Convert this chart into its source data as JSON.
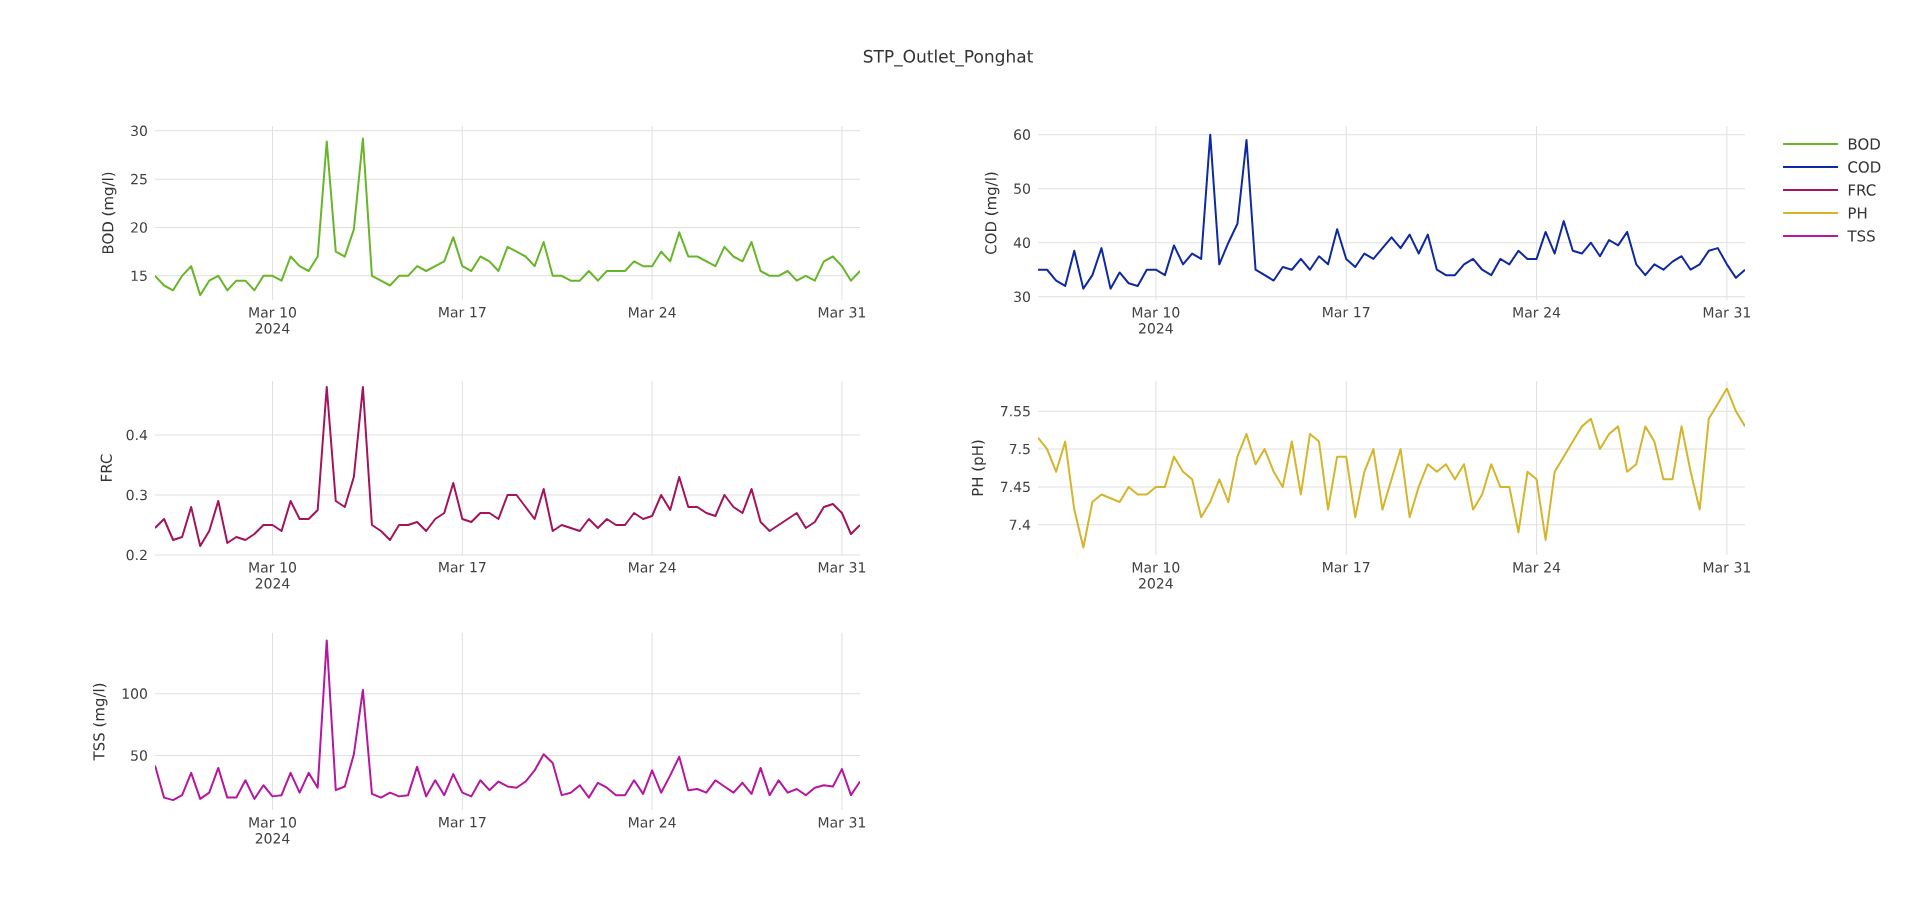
{
  "chart_data": [
    {
      "type": "line",
      "title": "STP_Outlet_Ponghat",
      "ylabel": "BOD (mg/l)",
      "grid": true,
      "legend": "right",
      "xlim": [
        "2024-03-05T16:00",
        "2024-03-31T16:00"
      ],
      "ylim": [
        12.5,
        30.5
      ],
      "yticks": [
        15,
        20,
        25,
        30
      ],
      "xticks": [
        {
          "value": "2024-03-10",
          "label": "Mar 10 2024"
        },
        {
          "value": "2024-03-17",
          "label": "Mar 17"
        },
        {
          "value": "2024-03-24",
          "label": "Mar 24"
        },
        {
          "value": "2024-03-31",
          "label": "Mar 31"
        }
      ],
      "x": [
        "2024-03-05T16:00",
        "2024-03-06T00:00",
        "2024-03-06T08:00",
        "2024-03-06T16:00",
        "2024-03-07T00:00",
        "2024-03-07T08:00",
        "2024-03-07T16:00",
        "2024-03-08T00:00",
        "2024-03-08T08:00",
        "2024-03-08T16:00",
        "2024-03-09T00:00",
        "2024-03-09T08:00",
        "2024-03-09T16:00",
        "2024-03-10T00:00",
        "2024-03-10T08:00",
        "2024-03-10T16:00",
        "2024-03-11T00:00",
        "2024-03-11T08:00",
        "2024-03-11T16:00",
        "2024-03-12T00:00",
        "2024-03-12T08:00",
        "2024-03-12T16:00",
        "2024-03-13T00:00",
        "2024-03-13T08:00",
        "2024-03-13T16:00",
        "2024-03-14T00:00",
        "2024-03-14T08:00",
        "2024-03-14T16:00",
        "2024-03-15T00:00",
        "2024-03-15T08:00",
        "2024-03-15T16:00",
        "2024-03-16T00:00",
        "2024-03-16T08:00",
        "2024-03-16T16:00",
        "2024-03-17T00:00",
        "2024-03-17T08:00",
        "2024-03-17T16:00",
        "2024-03-18T00:00",
        "2024-03-18T08:00",
        "2024-03-18T16:00",
        "2024-03-19T00:00",
        "2024-03-19T08:00",
        "2024-03-19T16:00",
        "2024-03-20T00:00",
        "2024-03-20T08:00",
        "2024-03-20T16:00",
        "2024-03-21T00:00",
        "2024-03-21T08:00",
        "2024-03-21T16:00",
        "2024-03-22T00:00",
        "2024-03-22T08:00",
        "2024-03-22T16:00",
        "2024-03-23T00:00",
        "2024-03-23T08:00",
        "2024-03-23T16:00",
        "2024-03-24T00:00",
        "2024-03-24T08:00",
        "2024-03-24T16:00",
        "2024-03-25T00:00",
        "2024-03-25T08:00",
        "2024-03-25T16:00",
        "2024-03-26T00:00",
        "2024-03-26T08:00",
        "2024-03-26T16:00",
        "2024-03-27T00:00",
        "2024-03-27T08:00",
        "2024-03-27T16:00",
        "2024-03-28T00:00",
        "2024-03-28T08:00",
        "2024-03-28T16:00",
        "2024-03-29T00:00",
        "2024-03-29T08:00",
        "2024-03-29T16:00",
        "2024-03-30T00:00",
        "2024-03-30T08:00",
        "2024-03-30T16:00",
        "2024-03-31T00:00",
        "2024-03-31T08:00",
        "2024-03-31T16:00"
      ],
      "series": [
        {
          "name": "BOD",
          "color": "#68b52a",
          "values": [
            15,
            14,
            13.5,
            15,
            16,
            13,
            14.5,
            15,
            13.5,
            14.5,
            14.5,
            13.5,
            15,
            15,
            14.5,
            17,
            16,
            15.5,
            17,
            28.9,
            17.5,
            17,
            19.8,
            29.2,
            15,
            14.5,
            14,
            15,
            15,
            16,
            15.5,
            16,
            16.5,
            19,
            16,
            15.5,
            17,
            16.5,
            15.5,
            18,
            17.5,
            17,
            16,
            18.5,
            15,
            15,
            14.5,
            14.5,
            15.5,
            14.5,
            15.5,
            15.5,
            15.5,
            16.5,
            16,
            16,
            17.5,
            16.5,
            19.5,
            17,
            17,
            16.5,
            16,
            18,
            17,
            16.5,
            18.5,
            15.5,
            15,
            15,
            15.5,
            14.5,
            15,
            14.5,
            16.5,
            17,
            16,
            14.5,
            15.5
          ]
        }
      ]
    },
    {
      "type": "line",
      "ylabel": "COD (mg/l)",
      "grid": true,
      "legend": "right",
      "xlim": [
        "2024-03-05T16:00",
        "2024-03-31T16:00"
      ],
      "ylim": [
        29.4,
        61.6
      ],
      "yticks": [
        30,
        40,
        50,
        60
      ],
      "xticks": [
        {
          "value": "2024-03-10",
          "label": "Mar 10 2024"
        },
        {
          "value": "2024-03-17",
          "label": "Mar 17"
        },
        {
          "value": "2024-03-24",
          "label": "Mar 24"
        },
        {
          "value": "2024-03-31",
          "label": "Mar 31"
        }
      ],
      "x": [
        "2024-03-05T16:00",
        "2024-03-06T00:00",
        "2024-03-06T08:00",
        "2024-03-06T16:00",
        "2024-03-07T00:00",
        "2024-03-07T08:00",
        "2024-03-07T16:00",
        "2024-03-08T00:00",
        "2024-03-08T08:00",
        "2024-03-08T16:00",
        "2024-03-09T00:00",
        "2024-03-09T08:00",
        "2024-03-09T16:00",
        "2024-03-10T00:00",
        "2024-03-10T08:00",
        "2024-03-10T16:00",
        "2024-03-11T00:00",
        "2024-03-11T08:00",
        "2024-03-11T16:00",
        "2024-03-12T00:00",
        "2024-03-12T08:00",
        "2024-03-12T16:00",
        "2024-03-13T00:00",
        "2024-03-13T08:00",
        "2024-03-13T16:00",
        "2024-03-14T00:00",
        "2024-03-14T08:00",
        "2024-03-14T16:00",
        "2024-03-15T00:00",
        "2024-03-15T08:00",
        "2024-03-15T16:00",
        "2024-03-16T00:00",
        "2024-03-16T08:00",
        "2024-03-16T16:00",
        "2024-03-17T00:00",
        "2024-03-17T08:00",
        "2024-03-17T16:00",
        "2024-03-18T00:00",
        "2024-03-18T08:00",
        "2024-03-18T16:00",
        "2024-03-19T00:00",
        "2024-03-19T08:00",
        "2024-03-19T16:00",
        "2024-03-20T00:00",
        "2024-03-20T08:00",
        "2024-03-20T16:00",
        "2024-03-21T00:00",
        "2024-03-21T08:00",
        "2024-03-21T16:00",
        "2024-03-22T00:00",
        "2024-03-22T08:00",
        "2024-03-22T16:00",
        "2024-03-23T00:00",
        "2024-03-23T08:00",
        "2024-03-23T16:00",
        "2024-03-24T00:00",
        "2024-03-24T08:00",
        "2024-03-24T16:00",
        "2024-03-25T00:00",
        "2024-03-25T08:00",
        "2024-03-25T16:00",
        "2024-03-26T00:00",
        "2024-03-26T08:00",
        "2024-03-26T16:00",
        "2024-03-27T00:00",
        "2024-03-27T08:00",
        "2024-03-27T16:00",
        "2024-03-28T00:00",
        "2024-03-28T08:00",
        "2024-03-28T16:00",
        "2024-03-29T00:00",
        "2024-03-29T08:00",
        "2024-03-29T16:00",
        "2024-03-30T00:00",
        "2024-03-30T08:00",
        "2024-03-30T16:00",
        "2024-03-31T00:00",
        "2024-03-31T08:00",
        "2024-03-31T16:00"
      ],
      "series": [
        {
          "name": "COD",
          "color": "#0f2aa0",
          "values": [
            35,
            35,
            33,
            32,
            38.5,
            31.5,
            34,
            39,
            31.5,
            34.5,
            32.5,
            32,
            35,
            35,
            34,
            39.5,
            36,
            38,
            37,
            60,
            36,
            40,
            43.5,
            59,
            35,
            34,
            33,
            35.5,
            35,
            37,
            35,
            37.5,
            36,
            42.5,
            37,
            35.5,
            38,
            37,
            39,
            41,
            39,
            41.5,
            38,
            41.5,
            35,
            34,
            34,
            36,
            37,
            35,
            34,
            37,
            36,
            38.5,
            37,
            37,
            42,
            38,
            44,
            38.5,
            38,
            40,
            37.5,
            40.5,
            39.5,
            42,
            36,
            34,
            36,
            35,
            36.5,
            37.5,
            35,
            36,
            38.5,
            39,
            36,
            33.5,
            35
          ]
        }
      ]
    },
    {
      "type": "line",
      "ylabel": "FRC",
      "grid": true,
      "legend": "right",
      "xlim": [
        "2024-03-05T16:00",
        "2024-03-31T16:00"
      ],
      "ylim": [
        0.2,
        0.49
      ],
      "yticks": [
        0.2,
        0.3,
        0.4
      ],
      "xticks": [
        {
          "value": "2024-03-10",
          "label": "Mar 10 2024"
        },
        {
          "value": "2024-03-17",
          "label": "Mar 17"
        },
        {
          "value": "2024-03-24",
          "label": "Mar 24"
        },
        {
          "value": "2024-03-31",
          "label": "Mar 31"
        }
      ],
      "x": [
        "2024-03-05T16:00",
        "2024-03-06T00:00",
        "2024-03-06T08:00",
        "2024-03-06T16:00",
        "2024-03-07T00:00",
        "2024-03-07T08:00",
        "2024-03-07T16:00",
        "2024-03-08T00:00",
        "2024-03-08T08:00",
        "2024-03-08T16:00",
        "2024-03-09T00:00",
        "2024-03-09T08:00",
        "2024-03-09T16:00",
        "2024-03-10T00:00",
        "2024-03-10T08:00",
        "2024-03-10T16:00",
        "2024-03-11T00:00",
        "2024-03-11T08:00",
        "2024-03-11T16:00",
        "2024-03-12T00:00",
        "2024-03-12T08:00",
        "2024-03-12T16:00",
        "2024-03-13T00:00",
        "2024-03-13T08:00",
        "2024-03-13T16:00",
        "2024-03-14T00:00",
        "2024-03-14T08:00",
        "2024-03-14T16:00",
        "2024-03-15T00:00",
        "2024-03-15T08:00",
        "2024-03-15T16:00",
        "2024-03-16T00:00",
        "2024-03-16T08:00",
        "2024-03-16T16:00",
        "2024-03-17T00:00",
        "2024-03-17T08:00",
        "2024-03-17T16:00",
        "2024-03-18T00:00",
        "2024-03-18T08:00",
        "2024-03-18T16:00",
        "2024-03-19T00:00",
        "2024-03-19T08:00",
        "2024-03-19T16:00",
        "2024-03-20T00:00",
        "2024-03-20T08:00",
        "2024-03-20T16:00",
        "2024-03-21T00:00",
        "2024-03-21T08:00",
        "2024-03-21T16:00",
        "2024-03-22T00:00",
        "2024-03-22T08:00",
        "2024-03-22T16:00",
        "2024-03-23T00:00",
        "2024-03-23T08:00",
        "2024-03-23T16:00",
        "2024-03-24T00:00",
        "2024-03-24T08:00",
        "2024-03-24T16:00",
        "2024-03-25T00:00",
        "2024-03-25T08:00",
        "2024-03-25T16:00",
        "2024-03-26T00:00",
        "2024-03-26T08:00",
        "2024-03-26T16:00",
        "2024-03-27T00:00",
        "2024-03-27T08:00",
        "2024-03-27T16:00",
        "2024-03-28T00:00",
        "2024-03-28T08:00",
        "2024-03-28T16:00",
        "2024-03-29T00:00",
        "2024-03-29T08:00",
        "2024-03-29T16:00",
        "2024-03-30T00:00",
        "2024-03-30T08:00",
        "2024-03-30T16:00",
        "2024-03-31T00:00",
        "2024-03-31T08:00",
        "2024-03-31T16:00"
      ],
      "series": [
        {
          "name": "FRC",
          "color": "#a3145a",
          "values": [
            0.245,
            0.26,
            0.225,
            0.23,
            0.28,
            0.215,
            0.24,
            0.29,
            0.22,
            0.23,
            0.225,
            0.235,
            0.25,
            0.25,
            0.24,
            0.29,
            0.26,
            0.26,
            0.275,
            0.48,
            0.29,
            0.28,
            0.33,
            0.48,
            0.25,
            0.24,
            0.225,
            0.25,
            0.25,
            0.255,
            0.24,
            0.26,
            0.27,
            0.32,
            0.26,
            0.255,
            0.27,
            0.27,
            0.26,
            0.3,
            0.3,
            0.28,
            0.26,
            0.31,
            0.24,
            0.25,
            0.245,
            0.24,
            0.26,
            0.245,
            0.26,
            0.25,
            0.25,
            0.27,
            0.26,
            0.265,
            0.3,
            0.275,
            0.33,
            0.28,
            0.28,
            0.27,
            0.265,
            0.3,
            0.28,
            0.27,
            0.31,
            0.255,
            0.24,
            0.25,
            0.26,
            0.27,
            0.245,
            0.255,
            0.28,
            0.285,
            0.27,
            0.235,
            0.25
          ]
        }
      ]
    },
    {
      "type": "line",
      "ylabel": "PH (pH)",
      "grid": true,
      "legend": "right",
      "xlim": [
        "2024-03-05T16:00",
        "2024-03-31T16:00"
      ],
      "ylim": [
        7.36,
        7.59
      ],
      "yticks": [
        7.4,
        7.45,
        7.5,
        7.55
      ],
      "xticks": [
        {
          "value": "2024-03-10",
          "label": "Mar 10 2024"
        },
        {
          "value": "2024-03-17",
          "label": "Mar 17"
        },
        {
          "value": "2024-03-24",
          "label": "Mar 24"
        },
        {
          "value": "2024-03-31",
          "label": "Mar 31"
        }
      ],
      "x": [
        "2024-03-05T16:00",
        "2024-03-06T00:00",
        "2024-03-06T08:00",
        "2024-03-06T16:00",
        "2024-03-07T00:00",
        "2024-03-07T08:00",
        "2024-03-07T16:00",
        "2024-03-08T00:00",
        "2024-03-08T08:00",
        "2024-03-08T16:00",
        "2024-03-09T00:00",
        "2024-03-09T08:00",
        "2024-03-09T16:00",
        "2024-03-10T00:00",
        "2024-03-10T08:00",
        "2024-03-10T16:00",
        "2024-03-11T00:00",
        "2024-03-11T08:00",
        "2024-03-11T16:00",
        "2024-03-12T00:00",
        "2024-03-12T08:00",
        "2024-03-12T16:00",
        "2024-03-13T00:00",
        "2024-03-13T08:00",
        "2024-03-13T16:00",
        "2024-03-14T00:00",
        "2024-03-14T08:00",
        "2024-03-14T16:00",
        "2024-03-15T00:00",
        "2024-03-15T08:00",
        "2024-03-15T16:00",
        "2024-03-16T00:00",
        "2024-03-16T08:00",
        "2024-03-16T16:00",
        "2024-03-17T00:00",
        "2024-03-17T08:00",
        "2024-03-17T16:00",
        "2024-03-18T00:00",
        "2024-03-18T08:00",
        "2024-03-18T16:00",
        "2024-03-19T00:00",
        "2024-03-19T08:00",
        "2024-03-19T16:00",
        "2024-03-20T00:00",
        "2024-03-20T08:00",
        "2024-03-20T16:00",
        "2024-03-21T00:00",
        "2024-03-21T08:00",
        "2024-03-21T16:00",
        "2024-03-22T00:00",
        "2024-03-22T08:00",
        "2024-03-22T16:00",
        "2024-03-23T00:00",
        "2024-03-23T08:00",
        "2024-03-23T16:00",
        "2024-03-24T00:00",
        "2024-03-24T08:00",
        "2024-03-24T16:00",
        "2024-03-25T00:00",
        "2024-03-25T08:00",
        "2024-03-25T16:00",
        "2024-03-26T00:00",
        "2024-03-26T08:00",
        "2024-03-26T16:00",
        "2024-03-27T00:00",
        "2024-03-27T08:00",
        "2024-03-27T16:00",
        "2024-03-28T00:00",
        "2024-03-28T08:00",
        "2024-03-28T16:00",
        "2024-03-29T00:00",
        "2024-03-29T08:00",
        "2024-03-29T16:00",
        "2024-03-30T00:00",
        "2024-03-30T08:00",
        "2024-03-30T16:00",
        "2024-03-31T00:00",
        "2024-03-31T08:00",
        "2024-03-31T16:00"
      ],
      "series": [
        {
          "name": "PH",
          "color": "#d4b52b",
          "values": [
            7.515,
            7.5,
            7.47,
            7.51,
            7.42,
            7.37,
            7.43,
            7.44,
            7.435,
            7.43,
            7.45,
            7.44,
            7.44,
            7.45,
            7.45,
            7.49,
            7.47,
            7.46,
            7.41,
            7.43,
            7.46,
            7.43,
            7.49,
            7.52,
            7.48,
            7.5,
            7.47,
            7.45,
            7.51,
            7.44,
            7.52,
            7.51,
            7.42,
            7.49,
            7.49,
            7.41,
            7.47,
            7.5,
            7.42,
            7.46,
            7.5,
            7.41,
            7.45,
            7.48,
            7.47,
            7.48,
            7.46,
            7.48,
            7.42,
            7.44,
            7.48,
            7.45,
            7.45,
            7.39,
            7.47,
            7.46,
            7.38,
            7.47,
            7.49,
            7.51,
            7.53,
            7.54,
            7.5,
            7.52,
            7.53,
            7.47,
            7.48,
            7.53,
            7.51,
            7.46,
            7.46,
            7.53,
            7.47,
            7.42,
            7.54,
            7.56,
            7.58,
            7.55,
            7.53
          ]
        }
      ]
    },
    {
      "type": "line",
      "ylabel": "TSS (mg/l)",
      "grid": true,
      "legend": "right",
      "xlim": [
        "2024-03-05T16:00",
        "2024-03-31T16:00"
      ],
      "ylim": [
        6,
        149
      ],
      "yticks": [
        50,
        100
      ],
      "xticks": [
        {
          "value": "2024-03-10",
          "label": "Mar 10 2024"
        },
        {
          "value": "2024-03-17",
          "label": "Mar 17"
        },
        {
          "value": "2024-03-24",
          "label": "Mar 24"
        },
        {
          "value": "2024-03-31",
          "label": "Mar 31"
        }
      ],
      "x": [
        "2024-03-05T16:00",
        "2024-03-06T00:00",
        "2024-03-06T08:00",
        "2024-03-06T16:00",
        "2024-03-07T00:00",
        "2024-03-07T08:00",
        "2024-03-07T16:00",
        "2024-03-08T00:00",
        "2024-03-08T08:00",
        "2024-03-08T16:00",
        "2024-03-09T00:00",
        "2024-03-09T08:00",
        "2024-03-09T16:00",
        "2024-03-10T00:00",
        "2024-03-10T08:00",
        "2024-03-10T16:00",
        "2024-03-11T00:00",
        "2024-03-11T08:00",
        "2024-03-11T16:00",
        "2024-03-12T00:00",
        "2024-03-12T08:00",
        "2024-03-12T16:00",
        "2024-03-13T00:00",
        "2024-03-13T08:00",
        "2024-03-13T16:00",
        "2024-03-14T00:00",
        "2024-03-14T08:00",
        "2024-03-14T16:00",
        "2024-03-15T00:00",
        "2024-03-15T08:00",
        "2024-03-15T16:00",
        "2024-03-16T00:00",
        "2024-03-16T08:00",
        "2024-03-16T16:00",
        "2024-03-17T00:00",
        "2024-03-17T08:00",
        "2024-03-17T16:00",
        "2024-03-18T00:00",
        "2024-03-18T08:00",
        "2024-03-18T16:00",
        "2024-03-19T00:00",
        "2024-03-19T08:00",
        "2024-03-19T16:00",
        "2024-03-20T00:00",
        "2024-03-20T08:00",
        "2024-03-20T16:00",
        "2024-03-21T00:00",
        "2024-03-21T08:00",
        "2024-03-21T16:00",
        "2024-03-22T00:00",
        "2024-03-22T08:00",
        "2024-03-22T16:00",
        "2024-03-23T00:00",
        "2024-03-23T08:00",
        "2024-03-23T16:00",
        "2024-03-24T00:00",
        "2024-03-24T08:00",
        "2024-03-24T16:00",
        "2024-03-25T00:00",
        "2024-03-25T08:00",
        "2024-03-25T16:00",
        "2024-03-26T00:00",
        "2024-03-26T08:00",
        "2024-03-26T16:00",
        "2024-03-27T00:00",
        "2024-03-27T08:00",
        "2024-03-27T16:00",
        "2024-03-28T00:00",
        "2024-03-28T08:00",
        "2024-03-28T16:00",
        "2024-03-29T00:00",
        "2024-03-29T08:00",
        "2024-03-29T16:00",
        "2024-03-30T00:00",
        "2024-03-30T08:00",
        "2024-03-30T16:00",
        "2024-03-31T00:00",
        "2024-03-31T08:00",
        "2024-03-31T16:00"
      ],
      "series": [
        {
          "name": "TSS",
          "color": "#b5179e",
          "values": [
            42,
            16,
            14,
            18,
            36,
            15,
            20,
            40,
            16,
            16,
            30,
            15,
            26,
            17,
            18,
            36,
            20,
            36,
            24,
            143,
            22,
            25,
            51,
            103,
            19,
            16,
            20,
            17,
            18,
            41,
            17,
            30,
            18,
            35,
            20,
            17,
            30,
            22,
            29,
            25,
            24,
            29,
            38,
            51,
            44,
            18,
            20,
            26,
            16,
            28,
            24,
            18,
            18,
            30,
            19,
            38,
            20,
            34,
            49,
            22,
            23,
            20,
            30,
            25,
            20,
            28,
            19,
            40,
            18,
            30,
            20,
            23,
            18,
            24,
            26,
            25,
            39,
            18,
            29
          ]
        }
      ]
    }
  ]
}
